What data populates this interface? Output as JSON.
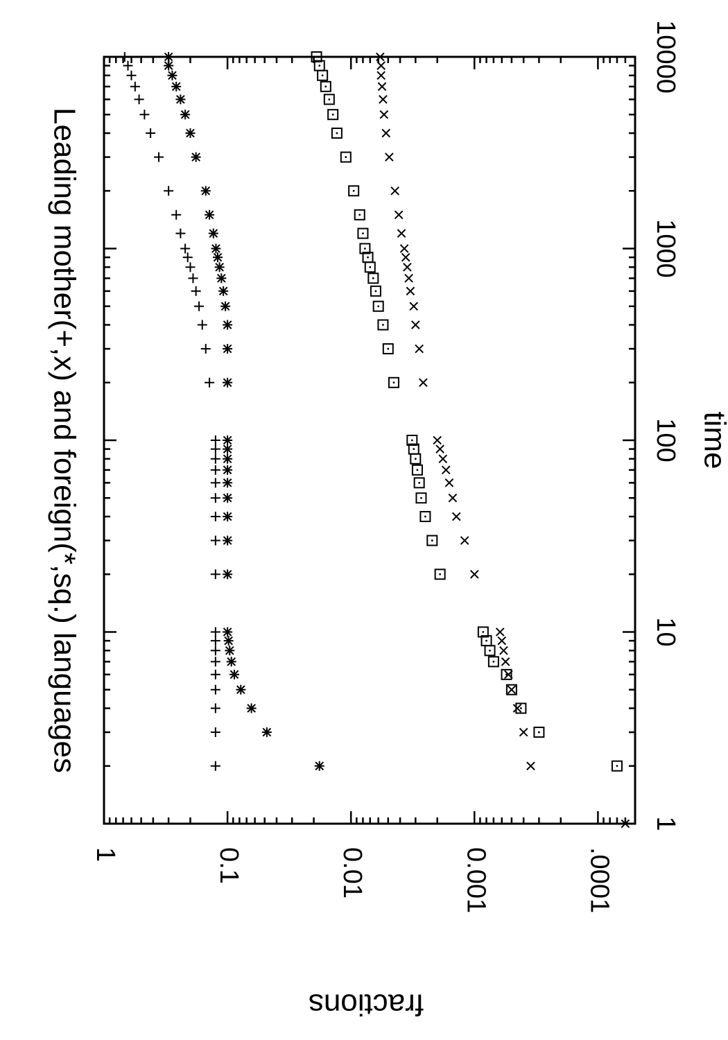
{
  "chart_data": {
    "type": "scatter",
    "title": "Leading mother(+,x) and foreign(*,sq.) languages",
    "xlabel": "time",
    "ylabel": "fractions",
    "xscale": "log",
    "yscale": "log",
    "xlim": [
      1,
      10000
    ],
    "ylim": [
      5e-05,
      1
    ],
    "x_ticks": [
      "1",
      "10",
      "100",
      "1000",
      "10000"
    ],
    "y_ticks": [
      ".0001",
      "0.001",
      "0.01",
      "0.1",
      "1"
    ],
    "orientation": "rotated 90 degrees clockwise (x axis runs top to bottom on the right, y axis runs along the bottom)",
    "grid": false,
    "legend": "none",
    "series": [
      {
        "marker": "plus",
        "x": [
          2,
          3,
          4,
          5,
          6,
          7,
          8,
          9,
          10,
          20,
          30,
          40,
          50,
          60,
          70,
          80,
          90,
          100,
          200,
          300,
          400,
          500,
          600,
          700,
          800,
          900,
          1000,
          1200,
          1500,
          2000,
          3000,
          4000,
          5000,
          6000,
          7000,
          8000,
          9000,
          10000
        ],
        "y": [
          0.125,
          0.125,
          0.125,
          0.125,
          0.125,
          0.125,
          0.125,
          0.125,
          0.125,
          0.125,
          0.125,
          0.125,
          0.125,
          0.125,
          0.125,
          0.125,
          0.125,
          0.125,
          0.14,
          0.15,
          0.16,
          0.17,
          0.18,
          0.19,
          0.2,
          0.21,
          0.22,
          0.24,
          0.26,
          0.3,
          0.36,
          0.42,
          0.47,
          0.52,
          0.56,
          0.6,
          0.64,
          0.68
        ]
      },
      {
        "marker": "cross",
        "x": [
          1,
          2,
          3,
          4,
          5,
          6,
          7,
          8,
          9,
          10,
          20,
          30,
          40,
          50,
          60,
          70,
          80,
          90,
          100,
          200,
          300,
          400,
          500,
          600,
          700,
          800,
          900,
          1000,
          1200,
          1500,
          2000,
          3000,
          4000,
          5000,
          6000,
          7000,
          8000,
          9000,
          10000
        ],
        "y": [
          6e-05,
          0.00035,
          0.0004,
          0.00045,
          0.0005,
          0.00053,
          0.00056,
          0.00058,
          0.0006,
          0.00062,
          0.001,
          0.0012,
          0.0014,
          0.0015,
          0.0016,
          0.0017,
          0.0018,
          0.0019,
          0.002,
          0.0026,
          0.0028,
          0.003,
          0.0031,
          0.0033,
          0.0034,
          0.0035,
          0.0036,
          0.0037,
          0.0039,
          0.0041,
          0.0044,
          0.0049,
          0.0052,
          0.0054,
          0.0055,
          0.0056,
          0.0057,
          0.0057,
          0.0058
        ]
      },
      {
        "marker": "star",
        "x": [
          2,
          3,
          4,
          5,
          6,
          7,
          8,
          9,
          10,
          20,
          30,
          40,
          50,
          60,
          70,
          80,
          90,
          100,
          200,
          300,
          400,
          500,
          600,
          700,
          800,
          900,
          1000,
          1200,
          1500,
          2000,
          3000,
          4000,
          5000,
          6000,
          7000,
          8000,
          9000,
          10000
        ],
        "y": [
          0.018,
          0.048,
          0.064,
          0.078,
          0.088,
          0.093,
          0.096,
          0.098,
          0.1,
          0.1,
          0.1,
          0.1,
          0.1,
          0.1,
          0.1,
          0.1,
          0.1,
          0.1,
          0.1,
          0.1,
          0.1,
          0.104,
          0.108,
          0.112,
          0.116,
          0.12,
          0.124,
          0.13,
          0.14,
          0.15,
          0.18,
          0.2,
          0.22,
          0.24,
          0.26,
          0.28,
          0.3,
          0.3
        ]
      },
      {
        "marker": "square",
        "x": [
          2,
          3,
          4,
          5,
          6,
          7,
          8,
          9,
          10,
          20,
          30,
          40,
          50,
          60,
          70,
          80,
          90,
          100,
          200,
          300,
          400,
          500,
          600,
          700,
          800,
          900,
          1000,
          1200,
          1500,
          2000,
          3000,
          4000,
          5000,
          6000,
          7000,
          8000,
          9000,
          10000
        ],
        "y": [
          7e-05,
          0.0003,
          0.00042,
          0.0005,
          0.00055,
          0.0007,
          0.00075,
          0.0008,
          0.00085,
          0.0019,
          0.0022,
          0.0025,
          0.0027,
          0.0028,
          0.0029,
          0.003,
          0.0031,
          0.0032,
          0.0045,
          0.005,
          0.0055,
          0.006,
          0.0063,
          0.0066,
          0.007,
          0.0073,
          0.0077,
          0.008,
          0.0085,
          0.0095,
          0.011,
          0.013,
          0.014,
          0.015,
          0.016,
          0.017,
          0.018,
          0.019
        ]
      }
    ]
  }
}
